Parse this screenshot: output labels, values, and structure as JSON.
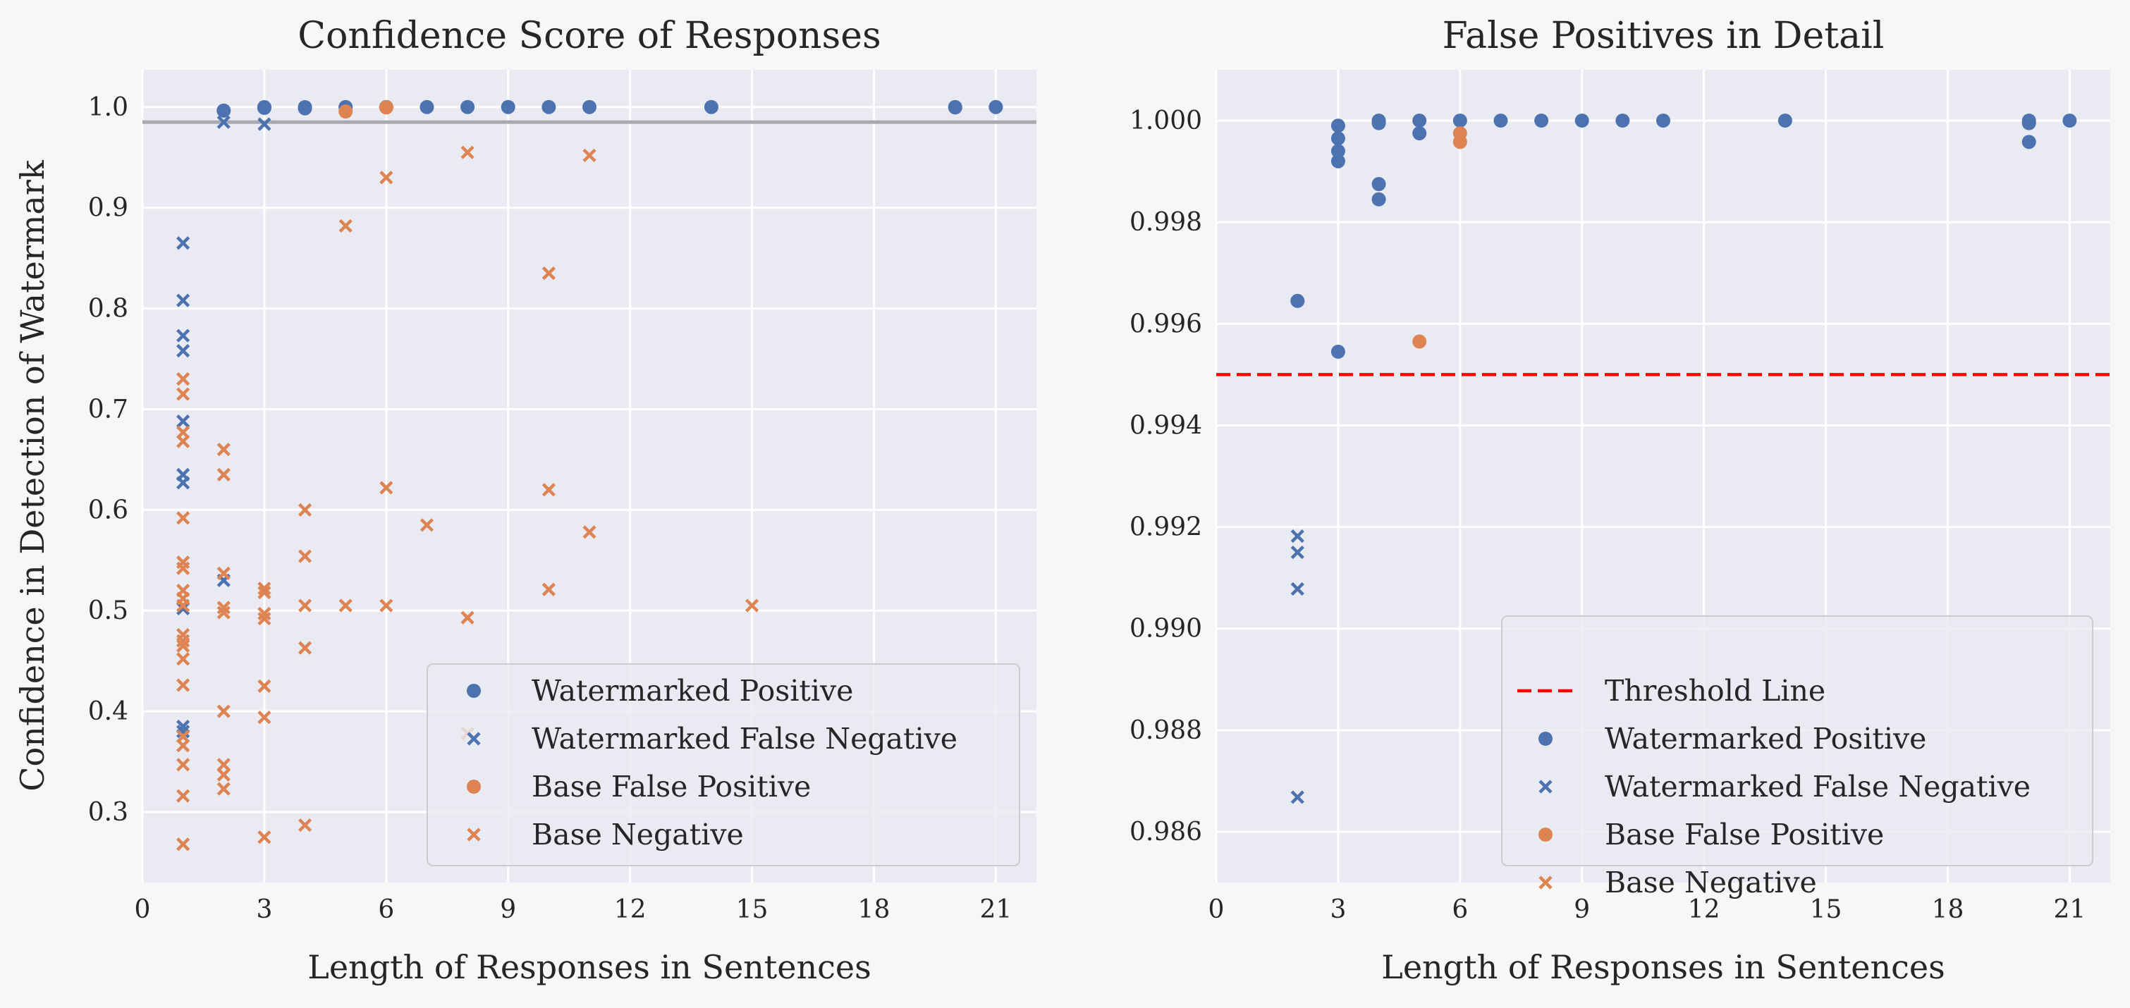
{
  "colors": {
    "watermarked": "#4c72b0",
    "base": "#dd8452",
    "background": "#f7f7f7",
    "plot_bg": "#eaeaf2",
    "grid": "#ffffff",
    "ref_line": "#a9a9b0",
    "threshold": "#ff0000"
  },
  "chart_data": [
    {
      "type": "scatter",
      "title": "Confidence Score of Responses",
      "xlabel": "Length of Responses in Sentences",
      "ylabel": "Confidence in Detection of Watermark",
      "xlim": [
        0,
        22
      ],
      "ylim": [
        0.23,
        1.037
      ],
      "xticks": [
        0,
        3,
        6,
        9,
        12,
        15,
        18,
        21
      ],
      "yticks": [
        0.3,
        0.4,
        0.5,
        0.6,
        0.7,
        0.8,
        0.9,
        1.0
      ],
      "ytick_labels": [
        "0.3",
        "0.4",
        "0.5",
        "0.6",
        "0.7",
        "0.8",
        "0.9",
        "1.0"
      ],
      "grid": true,
      "legend_position": "lower-right",
      "reference_line": {
        "orientation": "horizontal",
        "y": 0.985,
        "color": "#a9a9b0"
      },
      "series": [
        {
          "name": "Watermarked Positive",
          "marker": "circle",
          "color": "#4c72b0",
          "points": [
            [
              2,
              0.9965
            ],
            [
              3,
              0.9999
            ],
            [
              3,
              0.9995
            ],
            [
              3,
              0.9992
            ],
            [
              4,
              0.9999
            ],
            [
              4,
              0.9987
            ],
            [
              5,
              1.0
            ],
            [
              5,
              0.9998
            ],
            [
              6,
              1.0
            ],
            [
              7,
              1.0
            ],
            [
              8,
              1.0
            ],
            [
              9,
              1.0
            ],
            [
              10,
              1.0
            ],
            [
              11,
              1.0
            ],
            [
              14,
              1.0
            ],
            [
              20,
              1.0
            ],
            [
              20,
              0.9996
            ],
            [
              21,
              1.0
            ]
          ]
        },
        {
          "name": "Watermarked False Negative",
          "marker": "x",
          "color": "#4c72b0",
          "points": [
            [
              1,
              0.865
            ],
            [
              1,
              0.808
            ],
            [
              1,
              0.773
            ],
            [
              1,
              0.758
            ],
            [
              1,
              0.688
            ],
            [
              1,
              0.635
            ],
            [
              1,
              0.627
            ],
            [
              1,
              0.502
            ],
            [
              1,
              0.385
            ],
            [
              1,
              0.38
            ],
            [
              2,
              0.53
            ],
            [
              2,
              0.985
            ],
            [
              3,
              0.983
            ]
          ]
        },
        {
          "name": "Base False Positive",
          "marker": "circle",
          "color": "#dd8452",
          "points": [
            [
              5,
              0.9956
            ],
            [
              6,
              0.9998
            ],
            [
              6,
              0.9996
            ]
          ]
        },
        {
          "name": "Base Negative",
          "marker": "x",
          "color": "#dd8452",
          "points": [
            [
              1,
              0.73
            ],
            [
              1,
              0.715
            ],
            [
              1,
              0.677
            ],
            [
              1,
              0.668
            ],
            [
              1,
              0.592
            ],
            [
              1,
              0.548
            ],
            [
              1,
              0.542
            ],
            [
              1,
              0.52
            ],
            [
              1,
              0.512
            ],
            [
              1,
              0.505
            ],
            [
              1,
              0.476
            ],
            [
              1,
              0.47
            ],
            [
              1,
              0.465
            ],
            [
              1,
              0.452
            ],
            [
              1,
              0.426
            ],
            [
              1,
              0.375
            ],
            [
              1,
              0.366
            ],
            [
              1,
              0.347
            ],
            [
              1,
              0.316
            ],
            [
              1,
              0.268
            ],
            [
              2,
              0.66
            ],
            [
              2,
              0.635
            ],
            [
              2,
              0.537
            ],
            [
              2,
              0.503
            ],
            [
              2,
              0.498
            ],
            [
              2,
              0.4
            ],
            [
              2,
              0.347
            ],
            [
              2,
              0.337
            ],
            [
              2,
              0.323
            ],
            [
              3,
              0.522
            ],
            [
              3,
              0.518
            ],
            [
              3,
              0.497
            ],
            [
              3,
              0.492
            ],
            [
              3,
              0.425
            ],
            [
              3,
              0.394
            ],
            [
              3,
              0.275
            ],
            [
              4,
              0.6
            ],
            [
              4,
              0.554
            ],
            [
              4,
              0.505
            ],
            [
              4,
              0.463
            ],
            [
              4,
              0.287
            ],
            [
              5,
              0.882
            ],
            [
              5,
              0.505
            ],
            [
              6,
              0.93
            ],
            [
              6,
              0.622
            ],
            [
              6,
              0.505
            ],
            [
              7,
              0.585
            ],
            [
              8,
              0.955
            ],
            [
              8,
              0.493
            ],
            [
              8,
              0.378
            ],
            [
              10,
              0.835
            ],
            [
              10,
              0.62
            ],
            [
              10,
              0.521
            ],
            [
              11,
              0.952
            ],
            [
              11,
              0.578
            ],
            [
              15,
              0.505
            ]
          ]
        }
      ]
    },
    {
      "type": "scatter",
      "title": "False Positives in Detail",
      "xlabel": "Length of Responses in Sentences",
      "ylabel": "",
      "xlim": [
        0,
        22
      ],
      "ylim": [
        0.985,
        1.001
      ],
      "xticks": [
        0,
        3,
        6,
        9,
        12,
        15,
        18,
        21
      ],
      "yticks": [
        0.986,
        0.988,
        0.99,
        0.992,
        0.994,
        0.996,
        0.998,
        1.0
      ],
      "ytick_labels": [
        "0.986",
        "0.988",
        "0.990",
        "0.992",
        "0.994",
        "0.996",
        "0.998",
        "1.000"
      ],
      "grid": true,
      "legend_position": "lower-right",
      "threshold": {
        "name": "Threshold Line",
        "y": 0.995,
        "style": "dashed",
        "color": "#ff0000"
      },
      "series": [
        {
          "name": "Watermarked Positive",
          "marker": "circle",
          "color": "#4c72b0",
          "points": [
            [
              2,
              0.99645
            ],
            [
              3,
              0.99545
            ],
            [
              3,
              0.9999
            ],
            [
              3,
              0.99965
            ],
            [
              3,
              0.9994
            ],
            [
              3,
              0.9992
            ],
            [
              4,
              1.0
            ],
            [
              4,
              0.99995
            ],
            [
              4,
              0.99875
            ],
            [
              4,
              0.99845
            ],
            [
              5,
              1.0
            ],
            [
              5,
              0.99975
            ],
            [
              6,
              1.0
            ],
            [
              7,
              1.0
            ],
            [
              8,
              1.0
            ],
            [
              9,
              1.0
            ],
            [
              10,
              1.0
            ],
            [
              11,
              1.0
            ],
            [
              14,
              1.0
            ],
            [
              20,
              1.0
            ],
            [
              20,
              0.99995
            ],
            [
              20,
              0.99958
            ],
            [
              21,
              1.0
            ]
          ]
        },
        {
          "name": "Watermarked False Negative",
          "marker": "x",
          "color": "#4c72b0",
          "points": [
            [
              2,
              0.99182
            ],
            [
              2,
              0.9915
            ],
            [
              2,
              0.99078
            ],
            [
              2,
              0.98668
            ]
          ]
        },
        {
          "name": "Base False Positive",
          "marker": "circle",
          "color": "#dd8452",
          "points": [
            [
              5,
              0.99565
            ],
            [
              6,
              0.99975
            ],
            [
              6,
              0.99958
            ]
          ]
        },
        {
          "name": "Base Negative",
          "marker": "x",
          "color": "#dd8452",
          "points": []
        }
      ]
    }
  ]
}
